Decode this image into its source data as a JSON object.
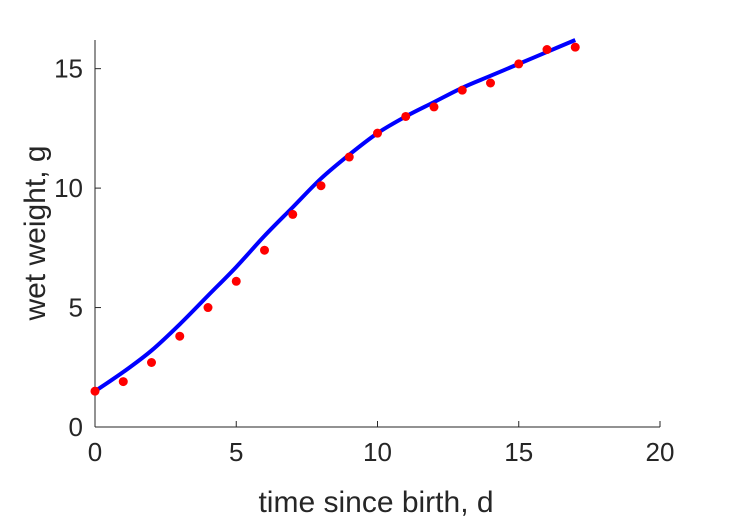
{
  "chart_data": {
    "type": "scatter",
    "title": "",
    "xlabel": "time since birth, d",
    "ylabel": "wet weight, g",
    "xlim": [
      0,
      20
    ],
    "ylim": [
      0,
      16.2
    ],
    "xticks": [
      0,
      5,
      10,
      15,
      20
    ],
    "yticks": [
      0,
      5,
      10,
      15
    ],
    "grid": false,
    "legend": "none",
    "series": [
      {
        "kind": "scatter",
        "color": "#ff0000",
        "x": [
          0,
          1,
          2,
          3,
          4,
          5,
          6,
          7,
          8,
          9,
          10,
          11,
          12,
          13,
          14,
          15,
          16,
          17
        ],
        "y": [
          1.5,
          1.9,
          2.7,
          3.8,
          5.0,
          6.1,
          7.4,
          8.9,
          10.1,
          11.3,
          12.3,
          13.0,
          13.4,
          14.1,
          14.4,
          15.2,
          15.8,
          15.9
        ]
      },
      {
        "kind": "line",
        "color": "#0000ff",
        "x": [
          0,
          1,
          2,
          3,
          4,
          5,
          6,
          7,
          8,
          9,
          10,
          11,
          12,
          13,
          14,
          15,
          16,
          17
        ],
        "y": [
          1.5,
          2.3,
          3.2,
          4.3,
          5.5,
          6.7,
          8.0,
          9.2,
          10.4,
          11.4,
          12.3,
          13.0,
          13.6,
          14.2,
          14.7,
          15.2,
          15.7,
          16.2
        ]
      }
    ]
  }
}
